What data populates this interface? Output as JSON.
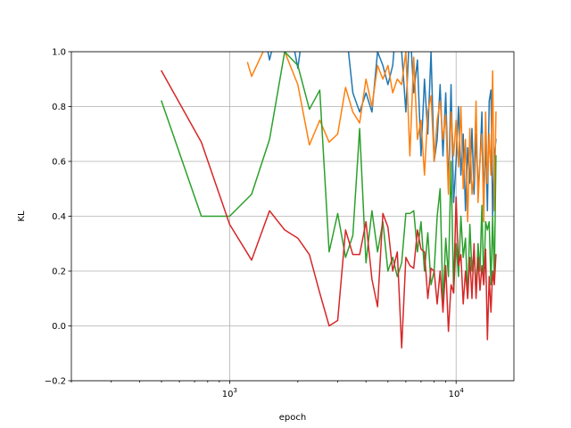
{
  "chart_data": {
    "type": "line",
    "xlabel": "epoch",
    "ylabel": "KL",
    "xscale": "log",
    "xlim": [
      200,
      18000
    ],
    "ylim": [
      -0.2,
      1.0
    ],
    "grid": true,
    "yticks": [
      -0.2,
      0.0,
      0.2,
      0.4,
      0.6,
      0.8,
      1.0
    ],
    "ytick_labels": [
      "−0.2",
      "0.0",
      "0.2",
      "0.4",
      "0.6",
      "0.8",
      "1.0"
    ],
    "xticks_major": [
      1000,
      10000
    ],
    "xtick_labels": [
      {
        "base": "10",
        "exp": "3"
      },
      {
        "base": "10",
        "exp": "4"
      }
    ],
    "colors": [
      "#1f77b4",
      "#ff7f0e",
      "#2ca02c",
      "#d62728"
    ],
    "series": [
      {
        "x": [
          1250,
          1500,
          1750,
          2000,
          2250,
          3000,
          3250,
          3500,
          3750,
          4000,
          4250,
          4500,
          4750,
          5000,
          5250,
          5500,
          5750,
          6000,
          6250,
          6500,
          6750,
          7000,
          7250,
          7500,
          7750,
          8000,
          8250,
          8500,
          8750,
          9000,
          9250,
          9500,
          9750,
          10000,
          10250,
          10500,
          10750,
          11000,
          11250,
          11500,
          11750,
          12000,
          12250,
          12500,
          12750,
          13000,
          13250,
          13500,
          13750,
          14000,
          14250,
          14500,
          14750,
          15000
        ],
        "y": [
          1.3,
          0.97,
          1.2,
          0.94,
          1.25,
          1.2,
          1.1,
          0.85,
          0.78,
          0.85,
          0.78,
          1.0,
          0.95,
          0.88,
          0.95,
          1.15,
          1.0,
          0.78,
          1.1,
          0.85,
          0.97,
          0.62,
          0.9,
          0.7,
          1.0,
          0.6,
          0.68,
          0.88,
          0.62,
          0.85,
          0.5,
          0.88,
          0.45,
          0.6,
          0.8,
          0.55,
          0.7,
          0.42,
          0.65,
          0.52,
          0.72,
          0.48,
          0.7,
          0.5,
          0.6,
          0.78,
          0.46,
          0.68,
          0.42,
          0.82,
          0.86,
          0.4,
          0.62,
          0.68
        ]
      },
      {
        "x": [
          1200,
          1250,
          1500,
          1750,
          2000,
          2250,
          2500,
          2750,
          3000,
          3250,
          3500,
          3750,
          4000,
          4250,
          4500,
          4750,
          5000,
          5250,
          5500,
          5750,
          6000,
          6250,
          6500,
          6750,
          7000,
          7250,
          7500,
          7750,
          8000,
          8250,
          8500,
          8750,
          9000,
          9250,
          9500,
          9750,
          10000,
          10250,
          10500,
          10750,
          11000,
          11250,
          11500,
          11750,
          12000,
          12250,
          12500,
          12750,
          13000,
          13250,
          13500,
          13750,
          14000,
          14250,
          14500,
          14750,
          15000
        ],
        "y": [
          0.96,
          0.91,
          1.05,
          1.0,
          0.88,
          0.66,
          0.75,
          0.67,
          0.7,
          0.87,
          0.78,
          0.74,
          0.9,
          0.8,
          0.95,
          0.9,
          0.95,
          0.85,
          0.9,
          0.88,
          1.0,
          0.62,
          0.98,
          0.68,
          0.75,
          0.55,
          0.78,
          0.84,
          0.6,
          0.75,
          0.82,
          0.68,
          0.77,
          0.48,
          0.78,
          0.62,
          0.75,
          0.58,
          0.8,
          0.5,
          0.68,
          0.38,
          0.72,
          0.48,
          0.55,
          0.82,
          0.45,
          0.6,
          0.7,
          0.38,
          0.78,
          0.52,
          0.7,
          0.55,
          0.93,
          0.42,
          0.78
        ]
      },
      {
        "x": [
          500,
          750,
          1000,
          1250,
          1500,
          1750,
          2000,
          2250,
          2500,
          2750,
          3000,
          3250,
          3500,
          3750,
          4000,
          4250,
          4500,
          4750,
          5000,
          5250,
          5500,
          5750,
          6000,
          6250,
          6500,
          6750,
          7000,
          7250,
          7500,
          7750,
          8000,
          8250,
          8500,
          8750,
          9000,
          9250,
          9500,
          9750,
          10000,
          10250,
          10500,
          10750,
          11000,
          11250,
          11500,
          11750,
          12000,
          12250,
          12500,
          12750,
          13000,
          13250,
          13500,
          13750,
          14000,
          14250,
          14500,
          14750,
          15000
        ],
        "y": [
          0.82,
          0.4,
          0.4,
          0.48,
          0.68,
          1.0,
          0.95,
          0.79,
          0.86,
          0.27,
          0.41,
          0.25,
          0.33,
          0.72,
          0.23,
          0.42,
          0.27,
          0.38,
          0.2,
          0.25,
          0.18,
          0.23,
          0.41,
          0.41,
          0.42,
          0.27,
          0.38,
          0.2,
          0.34,
          0.15,
          0.2,
          0.4,
          0.5,
          0.08,
          0.32,
          0.18,
          0.6,
          0.12,
          0.3,
          0.18,
          0.4,
          0.25,
          0.32,
          0.1,
          0.37,
          0.2,
          0.28,
          0.12,
          0.3,
          0.2,
          0.44,
          0.15,
          0.38,
          0.35,
          0.38,
          0.15,
          0.4,
          0.17,
          0.62
        ]
      },
      {
        "x": [
          500,
          750,
          1000,
          1250,
          1500,
          1750,
          2000,
          2250,
          2500,
          2750,
          3000,
          3250,
          3500,
          3750,
          4000,
          4250,
          4500,
          4750,
          5000,
          5250,
          5500,
          5750,
          6000,
          6250,
          6500,
          6750,
          7000,
          7250,
          7500,
          7750,
          8000,
          8250,
          8500,
          8750,
          9000,
          9250,
          9500,
          9750,
          10000,
          10250,
          10500,
          10750,
          11000,
          11250,
          11500,
          11750,
          12000,
          12250,
          12500,
          12750,
          13000,
          13250,
          13500,
          13750,
          14000,
          14250,
          14500,
          14750,
          15000
        ],
        "y": [
          0.93,
          0.67,
          0.37,
          0.24,
          0.42,
          0.35,
          0.32,
          0.26,
          0.12,
          0.0,
          0.02,
          0.35,
          0.26,
          0.26,
          0.38,
          0.17,
          0.07,
          0.41,
          0.36,
          0.2,
          0.27,
          -0.08,
          0.25,
          0.22,
          0.21,
          0.35,
          0.28,
          0.27,
          0.1,
          0.21,
          0.2,
          0.08,
          0.2,
          0.05,
          0.22,
          -0.02,
          0.15,
          0.12,
          0.47,
          0.22,
          0.26,
          0.08,
          0.2,
          0.1,
          0.25,
          0.1,
          0.3,
          0.1,
          0.25,
          0.13,
          0.22,
          0.15,
          0.28,
          -0.05,
          0.18,
          0.05,
          0.2,
          0.15,
          0.26
        ]
      }
    ]
  }
}
